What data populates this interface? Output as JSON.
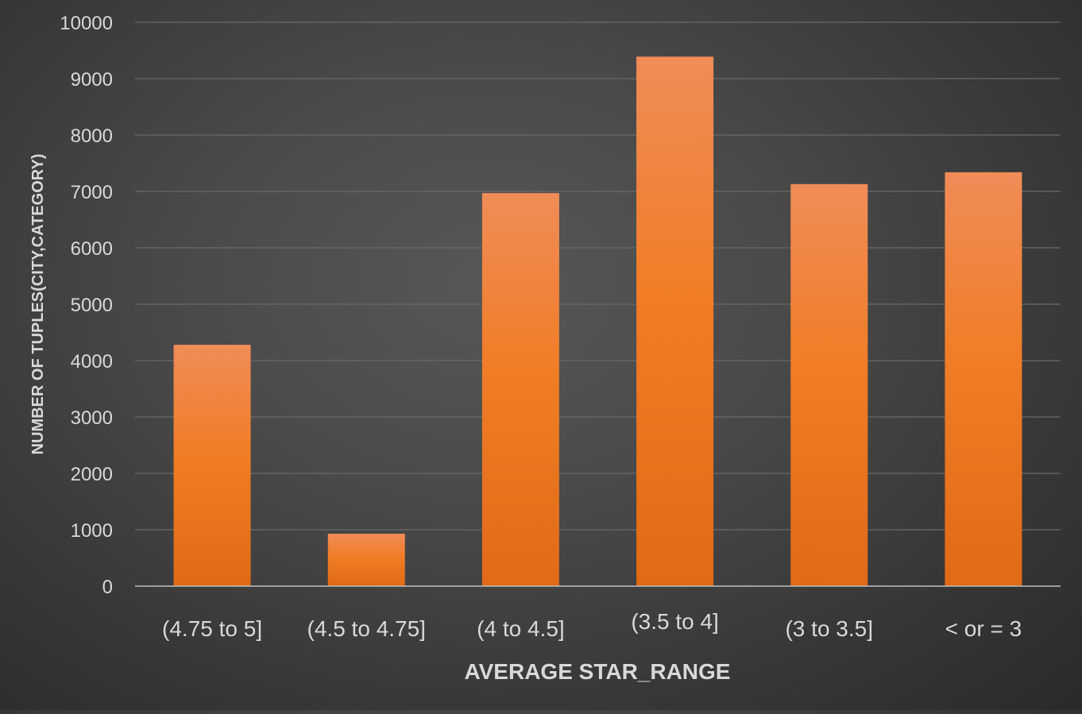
{
  "chart_data": {
    "type": "bar",
    "title": "",
    "xlabel": "AVERAGE STAR_RANGE",
    "ylabel": "NUMBER OF TUPLES(CITY,CATEGORY)",
    "categories": [
      "(4.75 to 5]",
      "(4.5 to 4.75]",
      "(4 to 4.5]",
      "(3.5 to 4]",
      "(3 to 3.5]",
      "< or = 3"
    ],
    "values": [
      4280,
      930,
      6970,
      9390,
      7130,
      7340
    ],
    "ylim": [
      0,
      10000
    ],
    "yticks": [
      "0",
      "1000",
      "2000",
      "3000",
      "4000",
      "5000",
      "6000",
      "7000",
      "8000",
      "9000",
      "10000"
    ],
    "grid": true,
    "legend": "none"
  },
  "colors": {
    "bar_top": "#f08c58",
    "bar_mid": "#f07d26",
    "bar_bottom": "#e06a16",
    "grid": "#6a6a6a",
    "axis": "#bfbfbf",
    "text": "#d9d9d9"
  }
}
